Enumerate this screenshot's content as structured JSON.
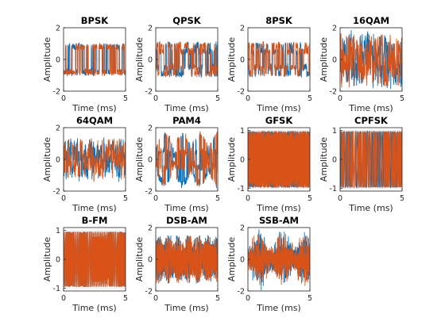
{
  "colors": {
    "series_a": "#0072bd",
    "series_b": "#d95319",
    "axes": "#262626",
    "grid": "#dfdfdf"
  },
  "chart_data": [
    {
      "type": "line",
      "title": "BPSK",
      "xlabel": "Time (ms)",
      "ylabel": "Amplitude",
      "xlim": [
        0,
        5
      ],
      "ylim": [
        -2,
        2
      ],
      "xticks": [
        0,
        5
      ],
      "yticks": [
        -2,
        0,
        2
      ],
      "signal": "bpsk",
      "amplitude": 1.0,
      "grid": true
    },
    {
      "type": "line",
      "title": "QPSK",
      "xlabel": "Time (ms)",
      "ylabel": "Amplitude",
      "xlim": [
        0,
        5
      ],
      "ylim": [
        -2,
        2
      ],
      "xticks": [
        0,
        5
      ],
      "yticks": [
        -2,
        0,
        2
      ],
      "signal": "qpsk",
      "amplitude": 1.0,
      "grid": true
    },
    {
      "type": "line",
      "title": "8PSK",
      "xlabel": "Time (ms)",
      "ylabel": "Amplitude",
      "xlim": [
        0,
        5
      ],
      "ylim": [
        -2,
        2
      ],
      "xticks": [
        0,
        5
      ],
      "yticks": [
        -2,
        0,
        2
      ],
      "signal": "psk8",
      "amplitude": 1.0,
      "grid": true
    },
    {
      "type": "line",
      "title": "16QAM",
      "xlabel": "Time (ms)",
      "ylabel": "Amplitude",
      "xlim": [
        0,
        5
      ],
      "ylim": [
        -2,
        2
      ],
      "xticks": [
        0,
        5
      ],
      "yticks": [
        -2,
        0,
        2
      ],
      "signal": "qam16",
      "amplitude": 1.6,
      "grid": true
    },
    {
      "type": "line",
      "title": "64QAM",
      "xlabel": "Time (ms)",
      "ylabel": "Amplitude",
      "xlim": [
        0,
        5
      ],
      "ylim": [
        -2,
        2
      ],
      "xticks": [
        0,
        5
      ],
      "yticks": [
        -2,
        0,
        2
      ],
      "signal": "qam64",
      "amplitude": 1.2,
      "grid": true
    },
    {
      "type": "line",
      "title": "PAM4",
      "xlabel": "Time (ms)",
      "ylabel": "Amplitude",
      "xlim": [
        0,
        5
      ],
      "ylim": [
        -2,
        2
      ],
      "xticks": [
        0,
        5
      ],
      "yticks": [
        -2,
        0,
        2
      ],
      "signal": "pam4",
      "amplitude": 1.5,
      "grid": true
    },
    {
      "type": "line",
      "title": "GFSK",
      "xlabel": "Time (ms)",
      "ylabel": "Amplitude",
      "xlim": [
        0,
        5
      ],
      "ylim": [
        -1.1,
        1.1
      ],
      "xticks": [
        0,
        5
      ],
      "yticks": [
        -1,
        0,
        1
      ],
      "signal": "gfsk",
      "amplitude": 1.0,
      "grid": true
    },
    {
      "type": "line",
      "title": "CPFSK",
      "xlabel": "Time (ms)",
      "ylabel": "Amplitude",
      "xlim": [
        0,
        5
      ],
      "ylim": [
        -1.1,
        1.1
      ],
      "xticks": [
        0,
        5
      ],
      "yticks": [
        -1,
        0,
        1
      ],
      "signal": "cpfsk",
      "amplitude": 1.0,
      "grid": true
    },
    {
      "type": "line",
      "title": "B-FM",
      "xlabel": "Time (ms)",
      "ylabel": "Amplitude",
      "xlim": [
        0,
        5
      ],
      "ylim": [
        -1.1,
        1.1
      ],
      "xticks": [
        0,
        5
      ],
      "yticks": [
        -1,
        0,
        1
      ],
      "signal": "bfm",
      "amplitude": 1.0,
      "grid": true
    },
    {
      "type": "line",
      "title": "DSB-AM",
      "xlabel": "Time (ms)",
      "ylabel": "Amplitude",
      "xlim": [
        0,
        5
      ],
      "ylim": [
        -2,
        2
      ],
      "xticks": [
        0,
        5
      ],
      "yticks": [
        -2,
        0,
        2
      ],
      "signal": "dsbam",
      "amplitude": 1.3,
      "grid": true
    },
    {
      "type": "line",
      "title": "SSB-AM",
      "xlabel": "Time (ms)",
      "ylabel": "Amplitude",
      "xlim": [
        0,
        5
      ],
      "ylim": [
        -2,
        2
      ],
      "xticks": [
        0,
        5
      ],
      "yticks": [
        -2,
        0,
        2
      ],
      "signal": "ssbam",
      "amplitude": 1.8,
      "grid": true
    }
  ]
}
